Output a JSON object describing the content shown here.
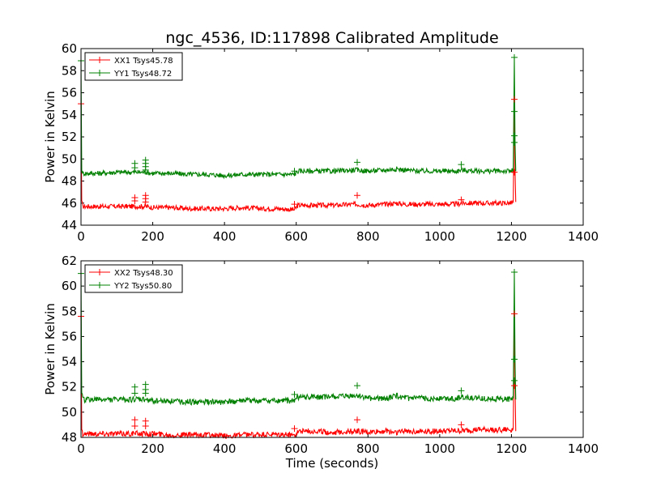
{
  "chart_data": [
    {
      "type": "line",
      "title": "ngc_4536, ID:117898 Calibrated Amplitude",
      "xlabel": "",
      "ylabel": "Power in Kelvin",
      "xlim": [
        0,
        1400
      ],
      "ylim": [
        44,
        60
      ],
      "xticks": [
        "0",
        "200",
        "400",
        "600",
        "800",
        "1000",
        "1200",
        "1400"
      ],
      "yticks": [
        "44",
        "46",
        "48",
        "50",
        "52",
        "54",
        "56",
        "58",
        "60"
      ],
      "legend_position": "top-left",
      "series": [
        {
          "name": "XX1 Tsys45.78",
          "color": "#ff0000",
          "x": [
            0,
            2,
            5,
            10,
            50,
            100,
            150,
            180,
            200,
            250,
            300,
            350,
            400,
            450,
            500,
            550,
            595,
            605,
            650,
            700,
            770,
            800,
            850,
            880,
            900,
            950,
            1000,
            1050,
            1060,
            1100,
            1150,
            1200,
            1205,
            1208,
            1210,
            1212
          ],
          "y": [
            55.0,
            46.2,
            45.7,
            45.7,
            45.7,
            45.7,
            45.7,
            45.7,
            45.6,
            45.6,
            45.5,
            45.5,
            45.5,
            45.6,
            45.5,
            45.5,
            45.4,
            45.8,
            45.8,
            45.8,
            45.9,
            45.8,
            45.9,
            46.0,
            45.9,
            45.9,
            45.9,
            45.9,
            46.0,
            46.0,
            46.0,
            46.0,
            46.1,
            55.3,
            48.9,
            46.1
          ]
        },
        {
          "name": "YY1 Tsys48.72",
          "color": "#008000",
          "x": [
            0,
            2,
            5,
            10,
            50,
            100,
            150,
            180,
            200,
            250,
            300,
            350,
            400,
            450,
            500,
            550,
            595,
            605,
            650,
            700,
            770,
            800,
            850,
            880,
            900,
            950,
            1000,
            1050,
            1060,
            1100,
            1150,
            1200,
            1205,
            1208,
            1210,
            1212
          ],
          "y": [
            58.9,
            49.0,
            48.7,
            48.7,
            48.7,
            48.8,
            48.8,
            48.8,
            48.7,
            48.7,
            48.6,
            48.6,
            48.5,
            48.6,
            48.6,
            48.6,
            48.6,
            48.9,
            48.9,
            48.9,
            49.0,
            48.9,
            49.0,
            49.1,
            49.0,
            48.9,
            48.9,
            48.9,
            49.0,
            48.9,
            48.9,
            48.9,
            49.0,
            59.2,
            51.5,
            48.9
          ]
        }
      ],
      "markers": [
        {
          "series": 0,
          "x": 150,
          "y": 46.5
        },
        {
          "series": 0,
          "x": 150,
          "y": 46.2
        },
        {
          "series": 0,
          "x": 180,
          "y": 46.7
        },
        {
          "series": 0,
          "x": 180,
          "y": 46.4
        },
        {
          "series": 0,
          "x": 180,
          "y": 46.1
        },
        {
          "series": 0,
          "x": 595,
          "y": 45.9
        },
        {
          "series": 0,
          "x": 770,
          "y": 46.7
        },
        {
          "series": 0,
          "x": 1060,
          "y": 46.3
        },
        {
          "series": 0,
          "x": 1208,
          "y": 55.4
        },
        {
          "series": 0,
          "x": 1208,
          "y": 48.8
        },
        {
          "series": 0,
          "x": 0,
          "y": 55.0
        },
        {
          "series": 1,
          "x": 150,
          "y": 49.6
        },
        {
          "series": 1,
          "x": 150,
          "y": 49.2
        },
        {
          "series": 1,
          "x": 180,
          "y": 49.9
        },
        {
          "series": 1,
          "x": 180,
          "y": 49.6
        },
        {
          "series": 1,
          "x": 180,
          "y": 49.3
        },
        {
          "series": 1,
          "x": 180,
          "y": 49.0
        },
        {
          "series": 1,
          "x": 595,
          "y": 48.9
        },
        {
          "series": 1,
          "x": 770,
          "y": 49.7
        },
        {
          "series": 1,
          "x": 1060,
          "y": 49.5
        },
        {
          "series": 1,
          "x": 1208,
          "y": 59.2
        },
        {
          "series": 1,
          "x": 1208,
          "y": 54.3
        },
        {
          "series": 1,
          "x": 1208,
          "y": 52.1
        },
        {
          "series": 1,
          "x": 1208,
          "y": 51.5
        },
        {
          "series": 1,
          "x": 0,
          "y": 58.9
        }
      ]
    },
    {
      "type": "line",
      "title": "",
      "xlabel": "Time (seconds)",
      "ylabel": "Power in Kelvin",
      "xlim": [
        0,
        1400
      ],
      "ylim": [
        48,
        62
      ],
      "xticks": [
        "0",
        "200",
        "400",
        "600",
        "800",
        "1000",
        "1200",
        "1400"
      ],
      "yticks": [
        "48",
        "50",
        "52",
        "54",
        "56",
        "58",
        "60",
        "62"
      ],
      "legend_position": "top-left",
      "series": [
        {
          "name": "XX2 Tsys48.30",
          "color": "#ff0000",
          "x": [
            0,
            2,
            5,
            10,
            50,
            100,
            150,
            180,
            200,
            250,
            300,
            350,
            400,
            450,
            500,
            550,
            595,
            605,
            650,
            700,
            770,
            800,
            850,
            880,
            900,
            950,
            1000,
            1050,
            1060,
            1100,
            1150,
            1200,
            1205,
            1208,
            1210,
            1212
          ],
          "y": [
            57.6,
            48.6,
            48.3,
            48.3,
            48.3,
            48.3,
            48.3,
            48.3,
            48.3,
            48.2,
            48.2,
            48.2,
            48.1,
            48.2,
            48.2,
            48.2,
            48.2,
            48.5,
            48.5,
            48.4,
            48.5,
            48.4,
            48.5,
            48.4,
            48.5,
            48.5,
            48.5,
            48.5,
            48.5,
            48.6,
            48.6,
            48.6,
            48.7,
            57.8,
            52.1,
            48.5
          ]
        },
        {
          "name": "YY2 Tsys50.80",
          "color": "#008000",
          "x": [
            0,
            2,
            5,
            10,
            50,
            100,
            150,
            180,
            200,
            250,
            300,
            350,
            400,
            450,
            500,
            550,
            595,
            605,
            650,
            700,
            770,
            800,
            850,
            880,
            900,
            950,
            1000,
            1050,
            1060,
            1100,
            1150,
            1200,
            1205,
            1208,
            1210,
            1212
          ],
          "y": [
            61.0,
            51.5,
            51.0,
            51.0,
            51.0,
            51.0,
            51.0,
            51.0,
            50.9,
            50.9,
            50.8,
            50.8,
            50.8,
            50.9,
            50.9,
            50.9,
            50.9,
            51.2,
            51.2,
            51.2,
            51.3,
            51.1,
            51.1,
            51.3,
            51.1,
            51.1,
            51.1,
            51.1,
            51.2,
            51.1,
            51.1,
            51.0,
            51.1,
            61.1,
            54.0,
            51.0
          ]
        }
      ],
      "markers": [
        {
          "series": 0,
          "x": 150,
          "y": 49.4
        },
        {
          "series": 0,
          "x": 150,
          "y": 48.9
        },
        {
          "series": 0,
          "x": 180,
          "y": 49.3
        },
        {
          "series": 0,
          "x": 180,
          "y": 48.9
        },
        {
          "series": 0,
          "x": 595,
          "y": 48.7
        },
        {
          "series": 0,
          "x": 770,
          "y": 49.4
        },
        {
          "series": 0,
          "x": 1060,
          "y": 49.0
        },
        {
          "series": 0,
          "x": 1208,
          "y": 57.8
        },
        {
          "series": 0,
          "x": 1208,
          "y": 52.1
        },
        {
          "series": 0,
          "x": 0,
          "y": 57.6
        },
        {
          "series": 1,
          "x": 150,
          "y": 52.0
        },
        {
          "series": 1,
          "x": 150,
          "y": 51.5
        },
        {
          "series": 1,
          "x": 180,
          "y": 52.2
        },
        {
          "series": 1,
          "x": 180,
          "y": 51.8
        },
        {
          "series": 1,
          "x": 180,
          "y": 51.5
        },
        {
          "series": 1,
          "x": 595,
          "y": 51.4
        },
        {
          "series": 1,
          "x": 770,
          "y": 52.1
        },
        {
          "series": 1,
          "x": 1060,
          "y": 51.7
        },
        {
          "series": 1,
          "x": 1208,
          "y": 61.1
        },
        {
          "series": 1,
          "x": 1208,
          "y": 54.2
        },
        {
          "series": 1,
          "x": 1208,
          "y": 52.5
        },
        {
          "series": 1,
          "x": 0,
          "y": 61.0
        }
      ]
    }
  ]
}
